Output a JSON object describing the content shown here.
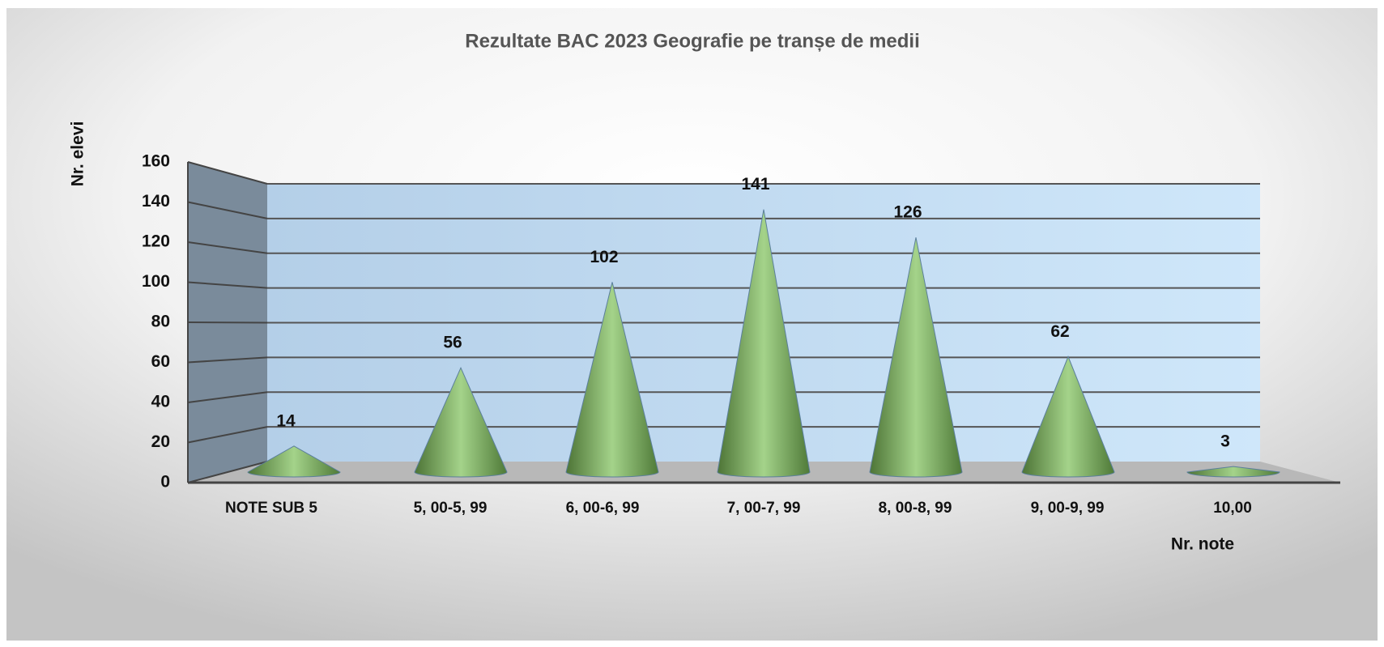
{
  "chart_data": {
    "type": "cone",
    "title": "Rezultate BAC 2023 Geografie pe tranșe de medii",
    "x_label": "Nr. note",
    "y_label": "Nr. elevi",
    "categories": [
      "NOTE SUB 5",
      "5, 00-5, 99",
      "6, 00-6, 99",
      "7, 00-7, 99",
      "8, 00-8, 99",
      "9, 00-9, 99",
      "10,00"
    ],
    "values": [
      14,
      56,
      102,
      141,
      126,
      62,
      3
    ],
    "color": "#6e9a4f",
    "ylim": [
      0,
      160
    ],
    "yticks": [
      0,
      20,
      40,
      60,
      80,
      100,
      120,
      140,
      160
    ],
    "grid": true
  }
}
